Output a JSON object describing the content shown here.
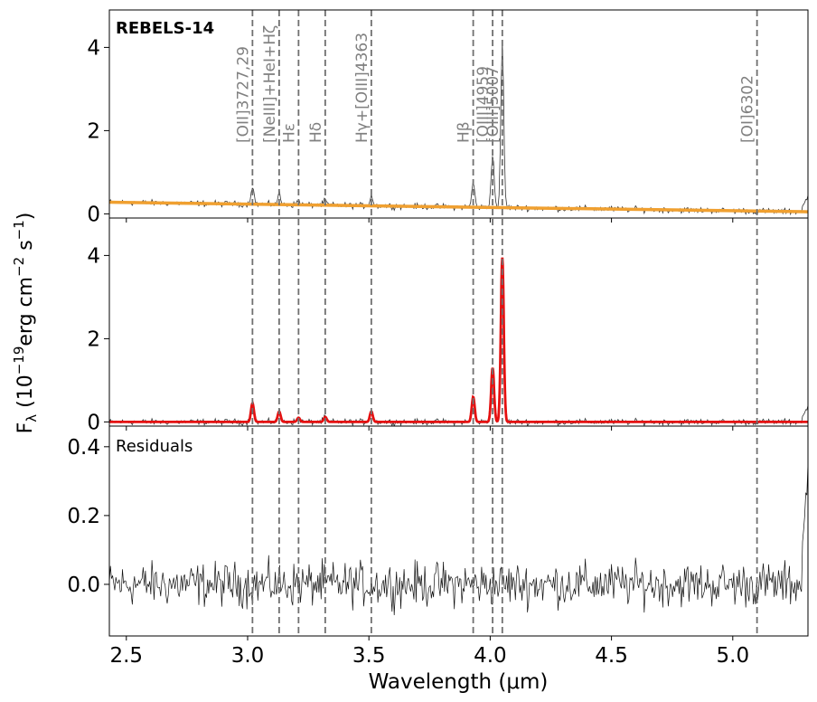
{
  "chart_data": {
    "type": "line",
    "description_axes": "three stacked panels sharing a wavelength x-axis",
    "xlabel": "Wavelength (μm)",
    "ylabel_shared": "F_λ (10^-19 erg cm^-2 s^-1)",
    "xlim": [
      2.43,
      5.31
    ],
    "x_ticks": [
      "2.5",
      "3.0",
      "3.5",
      "4.0",
      "4.5",
      "5.0"
    ],
    "x_tick_values": [
      2.5,
      3.0,
      3.5,
      4.0,
      4.5,
      5.0
    ],
    "lines": [
      {
        "label": "[OII]3727,29",
        "x": 3.02
      },
      {
        "label": "[NeIII]+HeI+Hζ",
        "x": 3.13
      },
      {
        "label": "Hε",
        "x": 3.21
      },
      {
        "label": "Hδ",
        "x": 3.32
      },
      {
        "label": "Hγ+[OIII]4363",
        "x": 3.51
      },
      {
        "label": "Hβ",
        "x": 3.93
      },
      {
        "label": "[OIII]4959",
        "x": 4.01
      },
      {
        "label": "[OIII]5007",
        "x": 4.05
      },
      {
        "label": "[OI]6302",
        "x": 5.1
      }
    ],
    "panels": [
      {
        "id": "spectrum",
        "label": "REBELS-14",
        "ylim": [
          -0.1,
          4.9
        ],
        "y_ticks": [
          "0",
          "2",
          "4"
        ],
        "y_tick_values": [
          0,
          2,
          4
        ],
        "series": [
          {
            "role": "observed",
            "color": "#333333"
          },
          {
            "role": "continuum",
            "color": "#f0a030",
            "start": 0.28,
            "end": 0.05
          }
        ]
      },
      {
        "id": "model",
        "label": "",
        "ylim": [
          -0.1,
          4.9
        ],
        "y_ticks": [
          "0",
          "2",
          "4"
        ],
        "y_tick_values": [
          0,
          2,
          4
        ],
        "series": [
          {
            "role": "observed",
            "color": "#333333"
          },
          {
            "role": "model",
            "color": "#e51010"
          }
        ],
        "peaks": [
          {
            "x": 3.02,
            "amp": 0.45
          },
          {
            "x": 3.13,
            "amp": 0.25
          },
          {
            "x": 3.21,
            "amp": 0.1
          },
          {
            "x": 3.32,
            "amp": 0.12
          },
          {
            "x": 3.51,
            "amp": 0.25
          },
          {
            "x": 3.93,
            "amp": 0.6
          },
          {
            "x": 4.01,
            "amp": 1.3
          },
          {
            "x": 4.05,
            "amp": 3.95
          }
        ]
      },
      {
        "id": "residuals",
        "label": "Residuals",
        "ylim": [
          -0.15,
          0.46
        ],
        "y_ticks": [
          "0.0",
          "0.2",
          "0.4"
        ],
        "y_tick_values": [
          0.0,
          0.2,
          0.4
        ],
        "series": [
          {
            "role": "residual",
            "color": "#111111"
          }
        ]
      }
    ],
    "colors": {
      "observed": "#333333",
      "continuum": "#f0a030",
      "model": "#e51010",
      "line_marker": "#707070",
      "line_label": "#808080"
    }
  }
}
